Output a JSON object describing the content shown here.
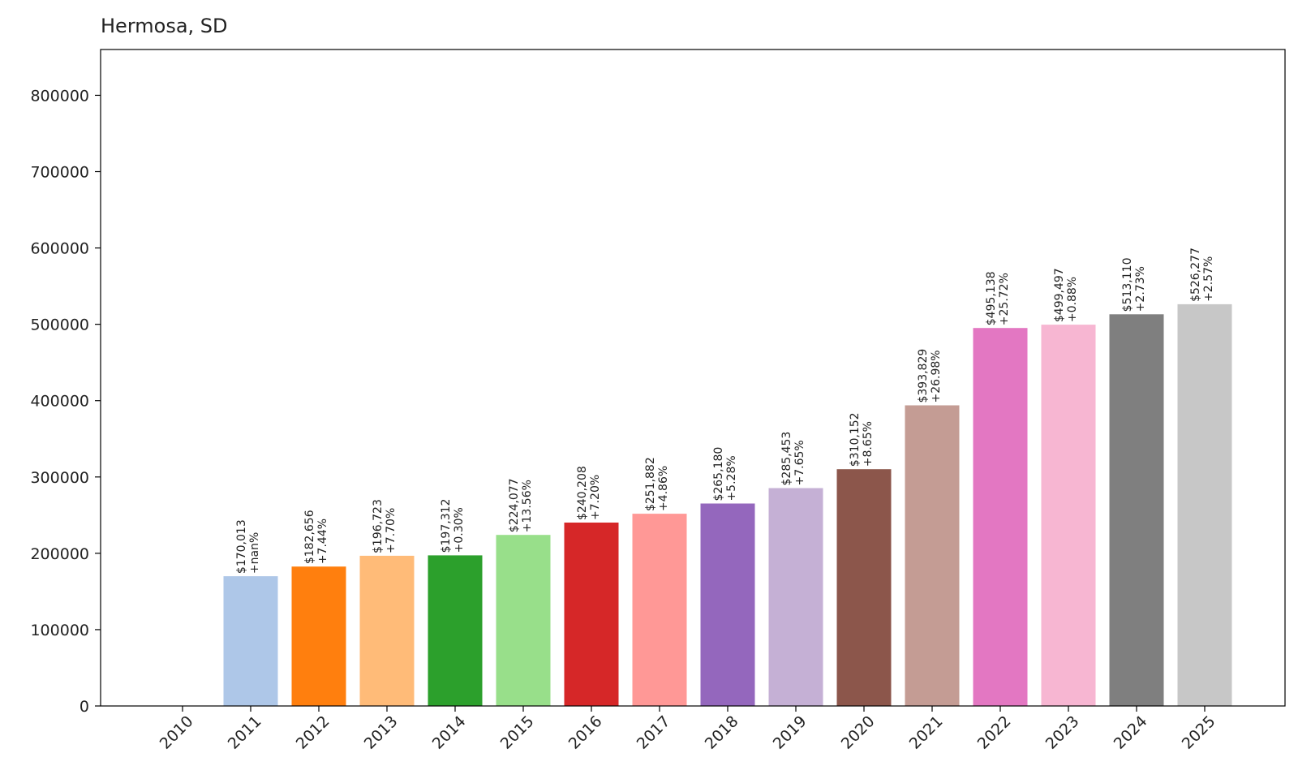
{
  "chart_data": {
    "type": "bar",
    "title": "Hermosa, SD",
    "xlabel": "",
    "ylabel": "",
    "ylim": [
      0,
      860000
    ],
    "yticks": [
      0,
      100000,
      200000,
      300000,
      400000,
      500000,
      600000,
      700000,
      800000
    ],
    "ytick_labels": [
      "0",
      "100000",
      "200000",
      "300000",
      "400000",
      "500000",
      "600000",
      "700000",
      "800000"
    ],
    "grid": false,
    "categories": [
      "2010",
      "2011",
      "2012",
      "2013",
      "2014",
      "2015",
      "2016",
      "2017",
      "2018",
      "2019",
      "2020",
      "2021",
      "2022",
      "2023",
      "2024",
      "2025"
    ],
    "values": [
      0,
      170013,
      182656,
      196723,
      197312,
      224077,
      240208,
      251882,
      265180,
      285453,
      310152,
      393829,
      495138,
      499497,
      513110,
      526277
    ],
    "value_labels": [
      "",
      "$170,013",
      "$182,656",
      "$196,723",
      "$197,312",
      "$224,077",
      "$240,208",
      "$251,882",
      "$265,180",
      "$285,453",
      "$310,152",
      "$393,829",
      "$495,138",
      "$499,497",
      "$513,110",
      "$526,277"
    ],
    "change_labels": [
      "",
      "+nan%",
      "+7.44%",
      "+7.70%",
      "+0.30%",
      "+13.56%",
      "+7.20%",
      "+4.86%",
      "+5.28%",
      "+7.65%",
      "+8.65%",
      "+26.98%",
      "+25.72%",
      "+0.88%",
      "+2.73%",
      "+2.57%"
    ],
    "colors": [
      "#1f77b4",
      "#aec7e8",
      "#ff7f0e",
      "#ffbb78",
      "#2ca02c",
      "#98df8a",
      "#d62728",
      "#ff9896",
      "#9467bd",
      "#c5b0d5",
      "#8c564b",
      "#c49c94",
      "#e377c2",
      "#f7b6d2",
      "#7f7f7f",
      "#c7c7c7"
    ]
  }
}
